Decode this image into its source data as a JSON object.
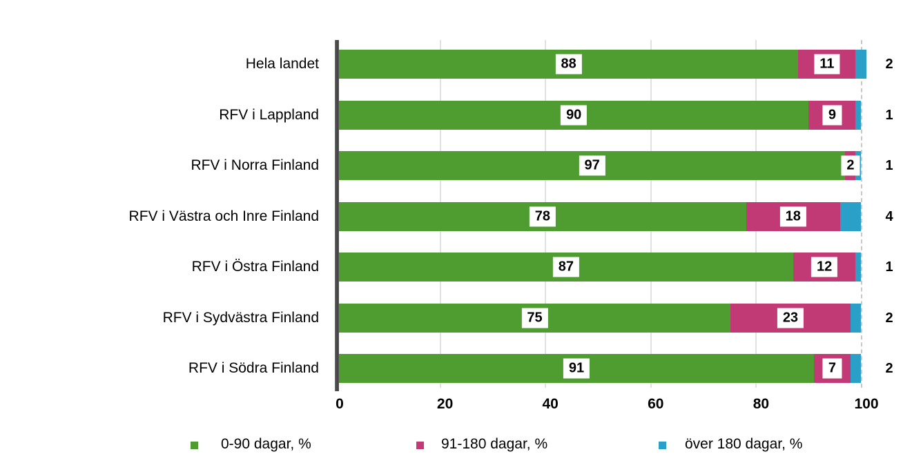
{
  "chart_data": {
    "type": "bar",
    "orientation": "horizontal",
    "stacked": true,
    "categories": [
      "Hela landet",
      "RFV i Lappland",
      "RFV i Norra Finland",
      "RFV i Västra och Inre Finland",
      "RFV i Östra Finland",
      "RFV i Sydvästra Finland",
      "RFV i Södra Finland"
    ],
    "series": [
      {
        "name": "0-90 dagar, %",
        "color": "#4F9C31",
        "values": [
          88,
          90,
          97,
          78,
          87,
          75,
          91
        ],
        "label_placement": "boxed-inside"
      },
      {
        "name": "91-180 dagar, %",
        "color": "#C13A76",
        "values": [
          11,
          9,
          2,
          18,
          12,
          23,
          7
        ],
        "label_placement": "boxed-inside"
      },
      {
        "name": "över 180 dagar, %",
        "color": "#2AA0C8",
        "values": [
          2,
          1,
          1,
          4,
          1,
          2,
          2
        ],
        "label_placement": "outside-right"
      }
    ],
    "x_ticks": [
      "0",
      "20",
      "40",
      "60",
      "80",
      "100"
    ],
    "xlim": [
      0,
      100
    ],
    "grid": "vertical, every 20",
    "gridline_at_100": "dashed",
    "legend_position": "bottom"
  },
  "styles": {
    "grid_color": "#e1e1e1",
    "grid_dashed_color": "#c7c7c7",
    "axis_color": "#4d4d4d",
    "label_box_background": "#ffffff",
    "text_color": "#000000"
  }
}
